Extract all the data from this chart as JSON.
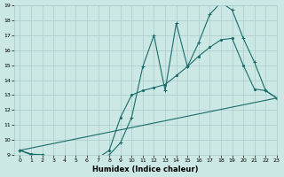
{
  "xlabel": "Humidex (Indice chaleur)",
  "bg_color": "#cce8e4",
  "grid_color": "#aacccc",
  "line_color": "#1a6b6b",
  "xlim": [
    -0.5,
    23
  ],
  "ylim": [
    9,
    19
  ],
  "xticks": [
    0,
    1,
    2,
    3,
    4,
    5,
    6,
    7,
    8,
    9,
    10,
    11,
    12,
    13,
    14,
    15,
    16,
    17,
    18,
    19,
    20,
    21,
    22,
    23
  ],
  "yticks": [
    9,
    10,
    11,
    12,
    13,
    14,
    15,
    16,
    17,
    18,
    19
  ],
  "line1_x": [
    0,
    1,
    2,
    3,
    4,
    5,
    6,
    7,
    8,
    9,
    10,
    11,
    12,
    13,
    14,
    15,
    16,
    17,
    18,
    19,
    20,
    21,
    22,
    23
  ],
  "line1_y": [
    9.3,
    9.0,
    9.0,
    8.8,
    8.9,
    8.9,
    8.85,
    8.75,
    9.0,
    9.8,
    11.5,
    14.9,
    17.0,
    13.3,
    17.8,
    14.9,
    16.5,
    18.4,
    19.2,
    18.7,
    16.8,
    15.2,
    13.3,
    12.8
  ],
  "line2_x": [
    0,
    1,
    2,
    3,
    4,
    5,
    6,
    7,
    8,
    9,
    10,
    11,
    12,
    13,
    14,
    15,
    16,
    17,
    18,
    19,
    20,
    21,
    22,
    23
  ],
  "line2_y": [
    9.3,
    9.05,
    9.0,
    8.85,
    8.9,
    8.9,
    8.85,
    8.8,
    9.3,
    11.5,
    13.0,
    13.3,
    13.5,
    13.7,
    14.3,
    14.9,
    15.6,
    16.2,
    16.7,
    16.8,
    15.0,
    13.4,
    13.3,
    12.8
  ],
  "line3_x": [
    0,
    23
  ],
  "line3_y": [
    9.3,
    12.8
  ]
}
